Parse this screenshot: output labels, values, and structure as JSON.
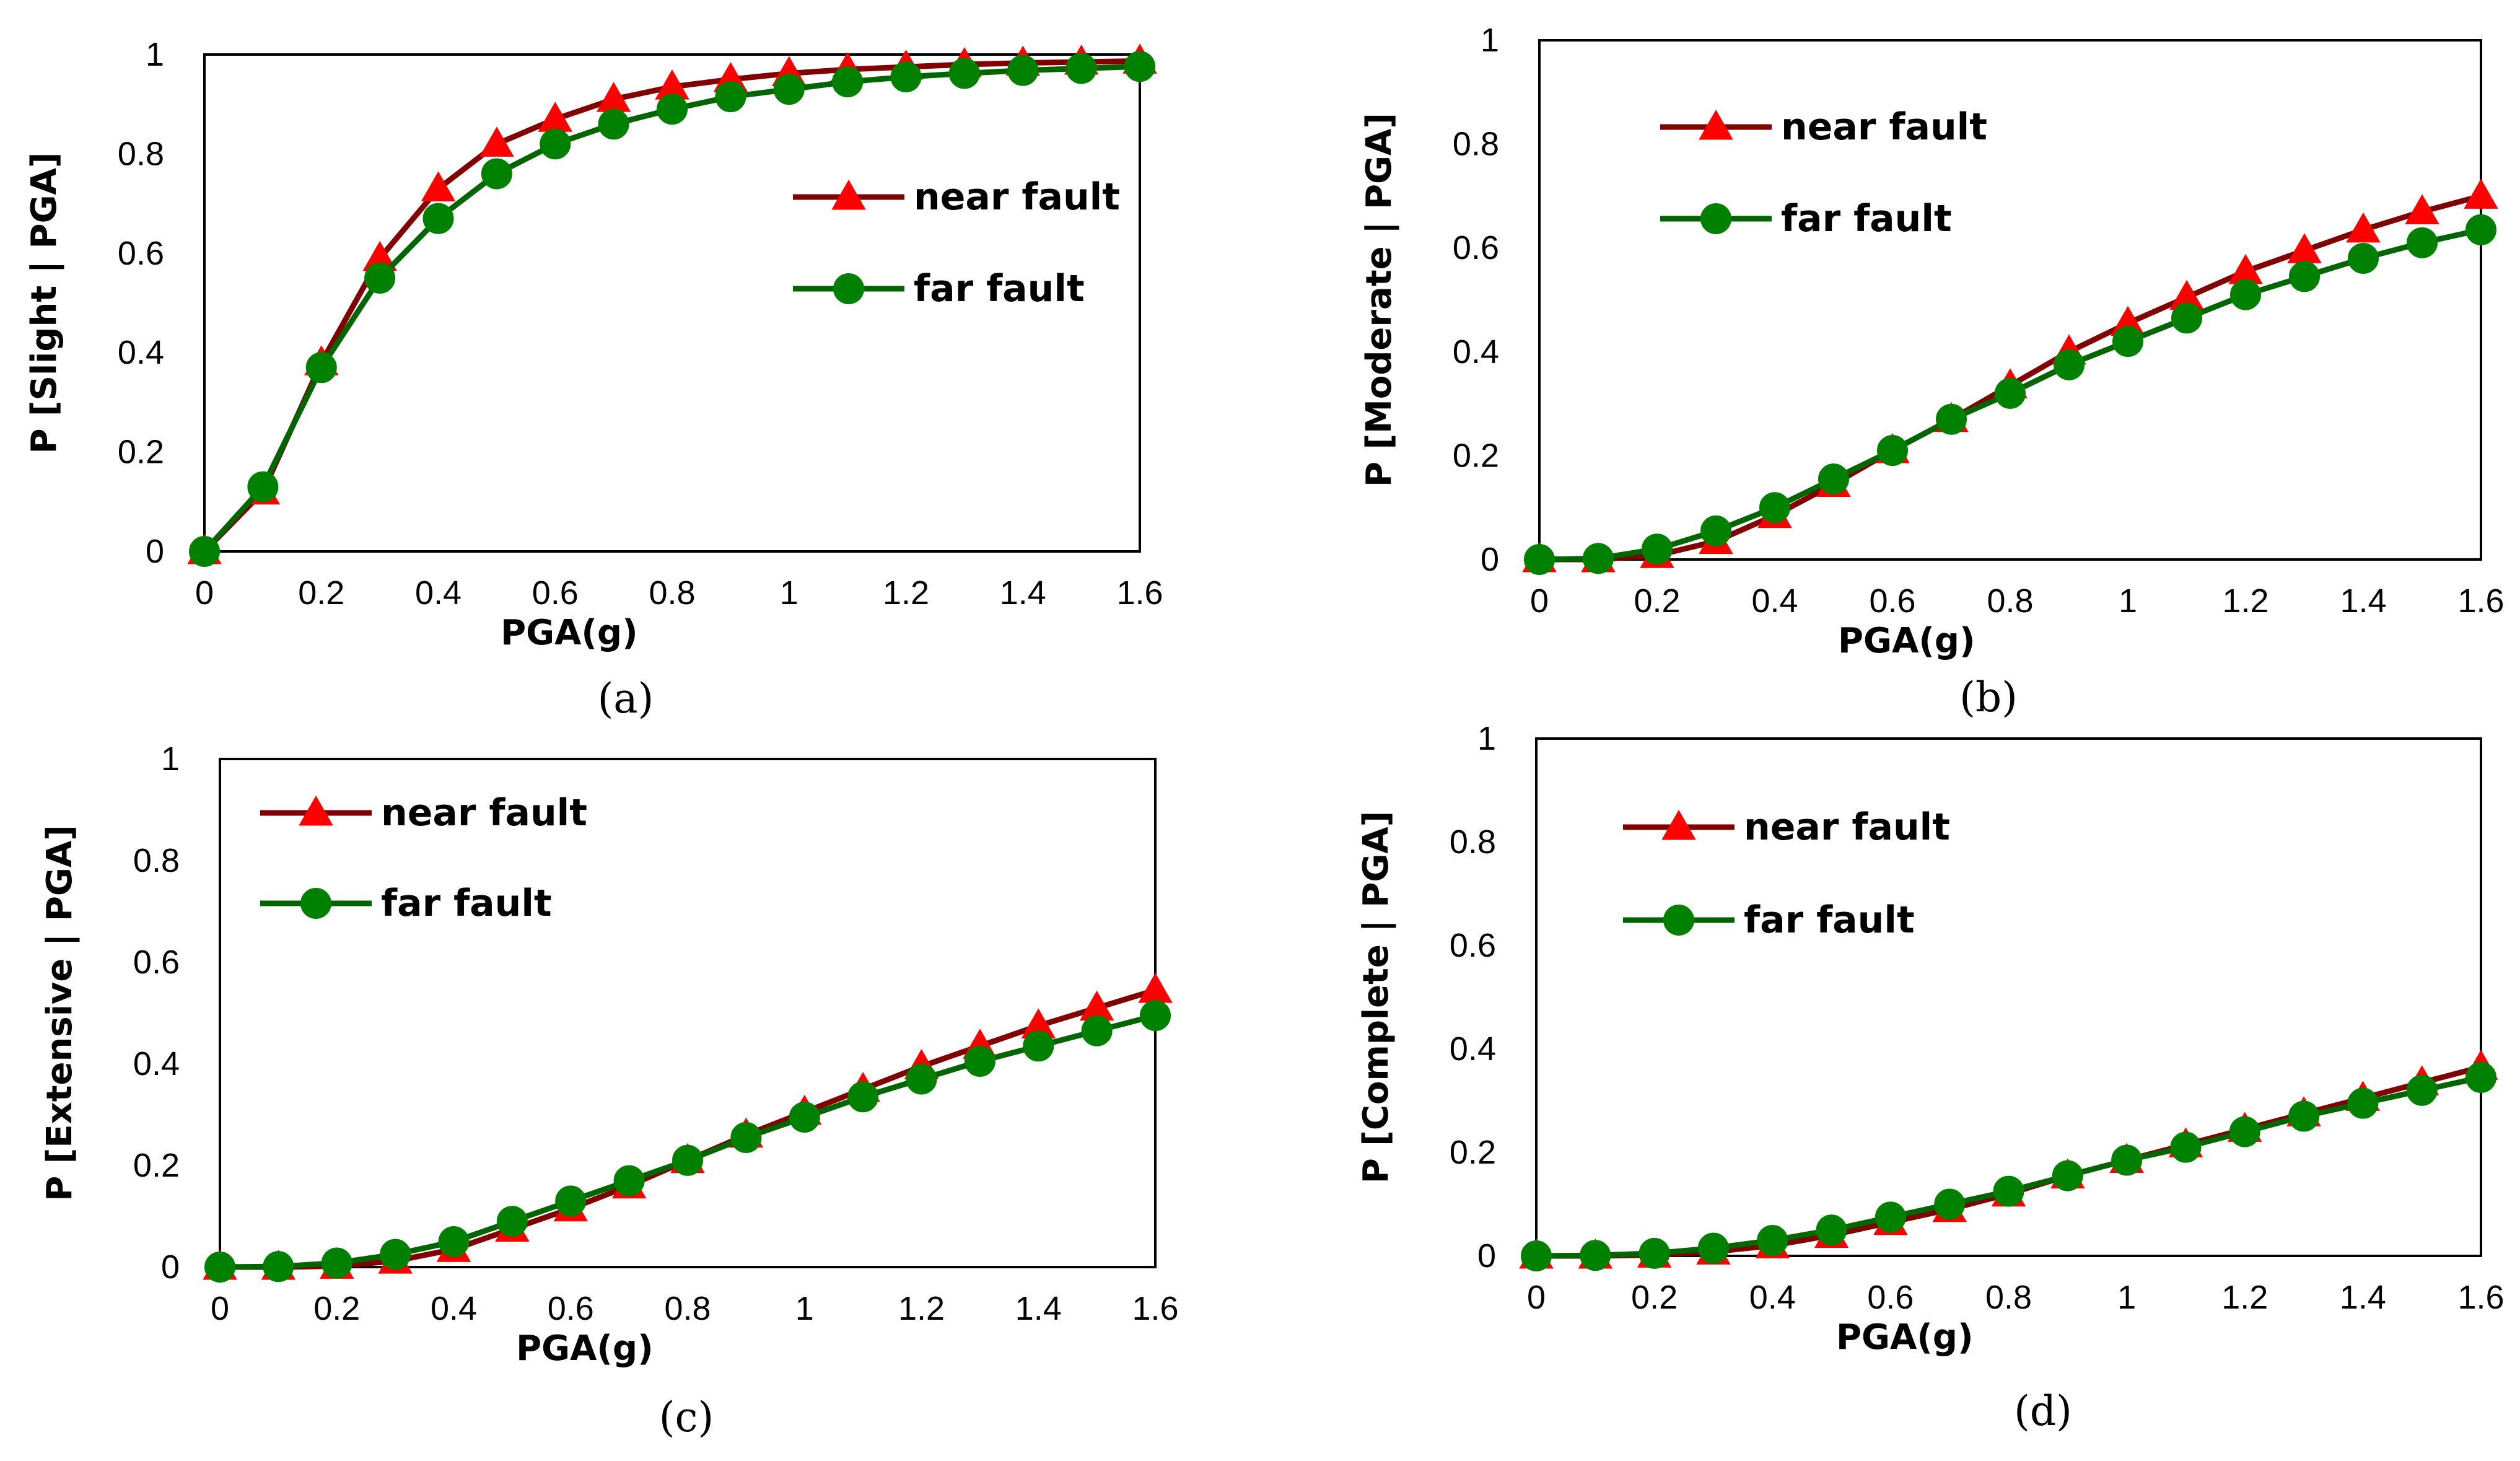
{
  "colors": {
    "near_line": "#800000",
    "near_marker": "#ff0000",
    "far_line": "#006400",
    "far_marker": "#008000"
  },
  "chart_data": [
    {
      "type": "line",
      "panel": "(a)",
      "caption": "(a)",
      "xlabel": "PGA(g)",
      "ylabel": "P [Slight | PGA]",
      "xlim": [
        0,
        1.6
      ],
      "ylim": [
        0,
        1
      ],
      "x_ticks": [
        "0",
        "0.2",
        "0.4",
        "0.6",
        "0.8",
        "1",
        "1.2",
        "1.4",
        "1.6"
      ],
      "y_ticks": [
        "0",
        "0.2",
        "0.4",
        "0.6",
        "0.8",
        "1"
      ],
      "legend_position": "right-center",
      "x": [
        0,
        0.1,
        0.2,
        0.3,
        0.4,
        0.5,
        0.6,
        0.7,
        0.8,
        0.9,
        1.0,
        1.1,
        1.2,
        1.3,
        1.4,
        1.5,
        1.6
      ],
      "series": [
        {
          "name": "near fault",
          "values": [
            0,
            0.12,
            0.38,
            0.59,
            0.73,
            0.82,
            0.87,
            0.91,
            0.935,
            0.95,
            0.962,
            0.97,
            0.975,
            0.98,
            0.983,
            0.985,
            0.987
          ]
        },
        {
          "name": "far fault",
          "values": [
            0,
            0.13,
            0.37,
            0.55,
            0.67,
            0.76,
            0.82,
            0.86,
            0.89,
            0.915,
            0.93,
            0.945,
            0.955,
            0.962,
            0.968,
            0.972,
            0.976
          ]
        }
      ]
    },
    {
      "type": "line",
      "panel": "(b)",
      "caption": "(b)",
      "xlabel": "PGA(g)",
      "ylabel": "P [Moderate | PGA]",
      "xlim": [
        0,
        1.6
      ],
      "ylim": [
        0,
        1
      ],
      "x_ticks": [
        "0",
        "0.2",
        "0.4",
        "0.6",
        "0.8",
        "1",
        "1.2",
        "1.4",
        "1.6"
      ],
      "y_ticks": [
        "0",
        "0.2",
        "0.4",
        "0.6",
        "0.8",
        "1"
      ],
      "legend_position": "top-left",
      "x": [
        0,
        0.1,
        0.2,
        0.3,
        0.4,
        0.5,
        0.6,
        0.7,
        0.8,
        0.9,
        1.0,
        1.1,
        1.2,
        1.3,
        1.4,
        1.5,
        1.6
      ],
      "series": [
        {
          "name": "near fault",
          "values": [
            0,
            0,
            0.008,
            0.035,
            0.085,
            0.145,
            0.21,
            0.27,
            0.335,
            0.4,
            0.455,
            0.505,
            0.555,
            0.595,
            0.635,
            0.67,
            0.7
          ]
        },
        {
          "name": "far fault",
          "values": [
            0,
            0.002,
            0.02,
            0.055,
            0.1,
            0.155,
            0.21,
            0.27,
            0.32,
            0.375,
            0.42,
            0.465,
            0.51,
            0.545,
            0.58,
            0.61,
            0.635
          ]
        }
      ]
    },
    {
      "type": "line",
      "panel": "(c)",
      "caption": "(c)",
      "xlabel": "PGA(g)",
      "ylabel": "P [Extensive | PGA]",
      "xlim": [
        0,
        1.6
      ],
      "ylim": [
        0,
        1
      ],
      "x_ticks": [
        "0",
        "0.2",
        "0.4",
        "0.6",
        "0.8",
        "1",
        "1.2",
        "1.4",
        "1.6"
      ],
      "y_ticks": [
        "0",
        "0.2",
        "0.4",
        "0.6",
        "0.8",
        "1"
      ],
      "legend_position": "top-left",
      "x": [
        0,
        0.1,
        0.2,
        0.3,
        0.4,
        0.5,
        0.6,
        0.7,
        0.8,
        0.9,
        1.0,
        1.1,
        1.2,
        1.3,
        1.4,
        1.5,
        1.6
      ],
      "series": [
        {
          "name": "near fault",
          "values": [
            0,
            0,
            0.002,
            0.012,
            0.035,
            0.075,
            0.115,
            0.16,
            0.21,
            0.26,
            0.305,
            0.35,
            0.395,
            0.435,
            0.475,
            0.51,
            0.545
          ]
        },
        {
          "name": "far fault",
          "values": [
            0,
            0.001,
            0.008,
            0.025,
            0.05,
            0.09,
            0.13,
            0.17,
            0.21,
            0.255,
            0.295,
            0.335,
            0.37,
            0.405,
            0.435,
            0.465,
            0.495
          ]
        }
      ]
    },
    {
      "type": "line",
      "panel": "(d)",
      "caption": "(d)",
      "xlabel": "PGA(g)",
      "ylabel": "P [Complete | PGA]",
      "xlim": [
        0,
        1.6
      ],
      "ylim": [
        0,
        1
      ],
      "x_ticks": [
        "0",
        "0.2",
        "0.4",
        "0.6",
        "0.8",
        "1",
        "1.2",
        "1.4",
        "1.6"
      ],
      "y_ticks": [
        "0",
        "0.2",
        "0.4",
        "0.6",
        "0.8",
        "1"
      ],
      "legend_position": "top-left",
      "x": [
        0,
        0.1,
        0.2,
        0.3,
        0.4,
        0.5,
        0.6,
        0.7,
        0.8,
        0.9,
        1.0,
        1.1,
        1.2,
        1.3,
        1.4,
        1.5,
        1.6
      ],
      "series": [
        {
          "name": "near fault",
          "values": [
            0,
            0,
            0.002,
            0.008,
            0.02,
            0.04,
            0.065,
            0.09,
            0.12,
            0.155,
            0.185,
            0.215,
            0.245,
            0.275,
            0.305,
            0.335,
            0.365
          ]
        },
        {
          "name": "far fault",
          "values": [
            0,
            0.001,
            0.005,
            0.015,
            0.03,
            0.05,
            0.075,
            0.1,
            0.125,
            0.155,
            0.185,
            0.21,
            0.24,
            0.27,
            0.295,
            0.32,
            0.345
          ]
        }
      ]
    }
  ]
}
